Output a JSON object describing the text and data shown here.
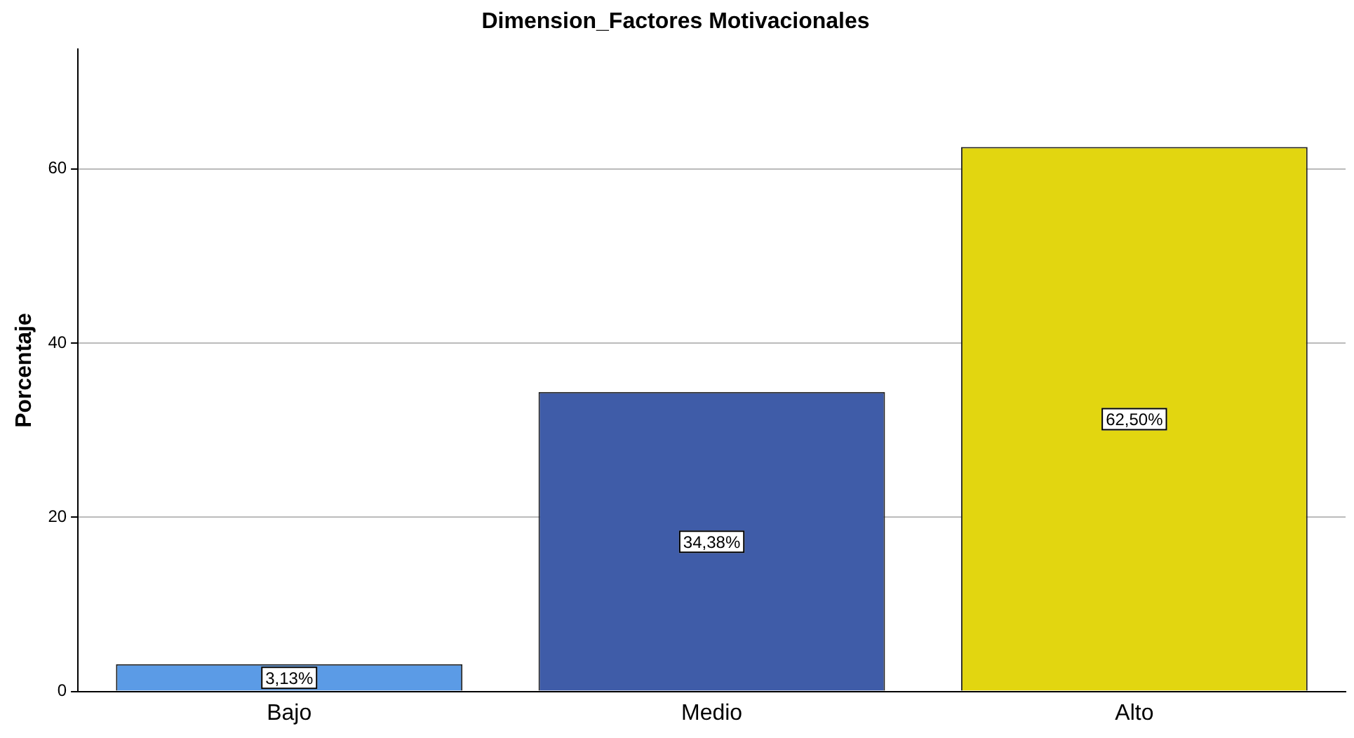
{
  "chart_data": {
    "type": "bar",
    "title": "Dimension_Factores Motivacionales",
    "ylabel": "Porcentaje",
    "categories": [
      "Bajo",
      "Medio",
      "Alto"
    ],
    "values": [
      3.13,
      34.38,
      62.5
    ],
    "colors": [
      "#5b9be6",
      "#3f5ca8",
      "#e2d610"
    ],
    "value_labels": [
      "3,13%",
      "34,38%",
      "62,50%"
    ],
    "ylim": [
      0,
      73.7
    ],
    "yticks": [
      0,
      20,
      40,
      60
    ],
    "grid": "y",
    "legend": false
  }
}
